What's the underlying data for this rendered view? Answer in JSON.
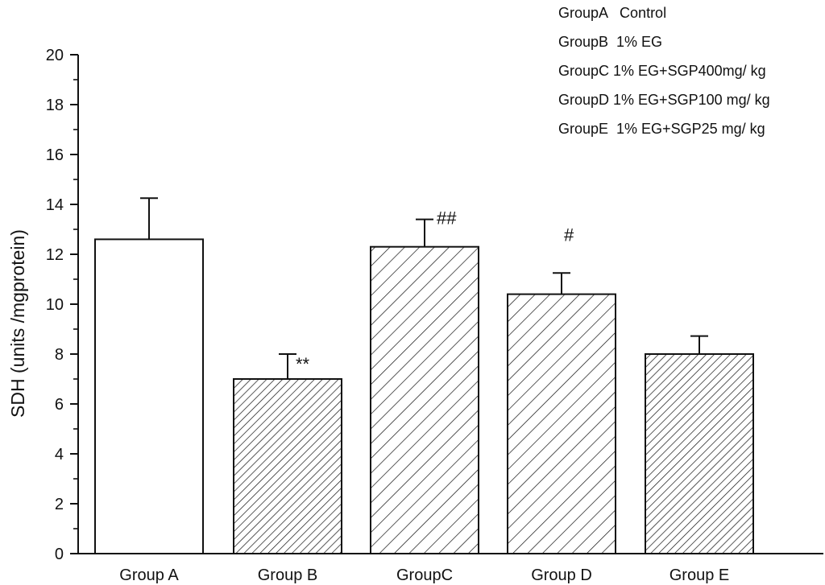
{
  "chart_data": {
    "type": "bar",
    "title": "",
    "xlabel": "",
    "ylabel": "SDH (units /mgprotein)",
    "ylim": [
      0,
      20
    ],
    "yticks": [
      0,
      2,
      4,
      6,
      8,
      10,
      12,
      14,
      16,
      18,
      20
    ],
    "grid": false,
    "categories": [
      "Group A",
      "Group B",
      "GroupC",
      "Group D",
      "Group E"
    ],
    "values": [
      12.6,
      7.0,
      12.3,
      10.4,
      8.0
    ],
    "errors": [
      1.65,
      1.0,
      1.1,
      0.85,
      0.72
    ],
    "fill_patterns": [
      "none",
      "dense-diagonal",
      "sparse-diagonal",
      "sparse-diagonal",
      "dense-diagonal"
    ],
    "annotations": [
      "",
      "**",
      "##",
      "#",
      ""
    ],
    "legend": {
      "position": "top-right",
      "entries": [
        "GroupA   Control",
        "GroupB  1% EG",
        "GroupC 1% EG+SGP400mg/ kg",
        "GroupD 1% EG+SGP100 mg/ kg",
        "GroupE  1% EG+SGP25 mg/ kg"
      ]
    }
  },
  "colors": {
    "stroke": "#111111",
    "background": "#ffffff"
  }
}
